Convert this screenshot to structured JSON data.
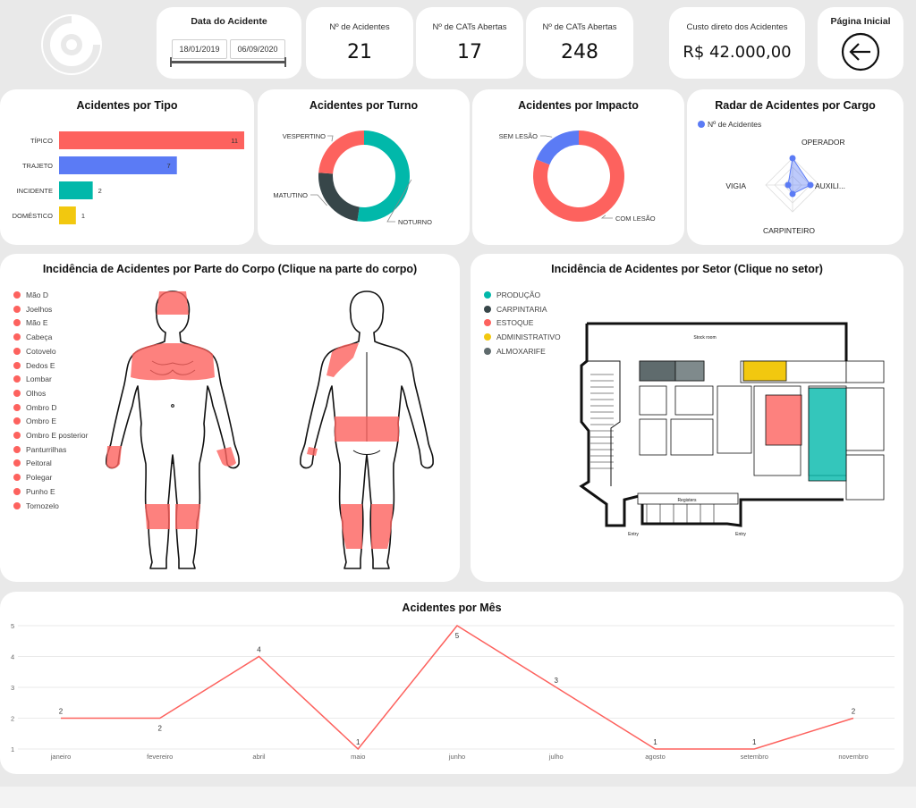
{
  "date_filter": {
    "title": "Data do Acidente",
    "start": "18/01/2019",
    "end": "06/09/2020"
  },
  "kpis": {
    "accidents": {
      "label": "Nº de Acidentes",
      "value": "21"
    },
    "cats_1": {
      "label": "Nº de CATs Abertas",
      "value": "17"
    },
    "cats_2": {
      "label": "Nº de CATs Abertas",
      "value": "248"
    },
    "cost": {
      "label": "Custo direto dos Acidentes",
      "value": "R$ 42.000,00"
    }
  },
  "home": {
    "label": "Página Inicial",
    "icon": "arrow-left-circle-icon"
  },
  "by_type": {
    "title": "Acidentes por Tipo",
    "chart_data": {
      "type": "bar",
      "orientation": "horizontal",
      "categories": [
        "TÍPICO",
        "TRAJETO",
        "INCIDENTE",
        "DOMÉSTICO"
      ],
      "values": [
        11,
        7,
        2,
        1
      ],
      "colors": [
        "#fd625e",
        "#5b7bf5",
        "#01b8aa",
        "#f2c80f"
      ]
    }
  },
  "by_shift": {
    "title": "Acidentes por Turno",
    "chart_data": {
      "type": "pie",
      "donut": true,
      "labels": [
        "NOTURNO",
        "MATUTINO",
        "VESPERTINO"
      ],
      "values": [
        11,
        5,
        5
      ],
      "colors": [
        "#01b8aa",
        "#374649",
        "#fd625e"
      ]
    }
  },
  "by_impact": {
    "title": "Acidentes por Impacto",
    "chart_data": {
      "type": "pie",
      "donut": true,
      "labels": [
        "COM LESÃO",
        "SEM LESÃO"
      ],
      "values": [
        17,
        4
      ],
      "colors": [
        "#fd625e",
        "#5b7bf5"
      ]
    }
  },
  "radar": {
    "title": "Radar de Acidentes por Cargo",
    "legend": "Nº de Acidentes",
    "color": "#5b7bf5",
    "chart_data": {
      "type": "radar",
      "axes": [
        "OPERADOR",
        "AUXILI...",
        "CARPINTEIRO",
        "VIGIA"
      ],
      "values": [
        6,
        4,
        2,
        1
      ],
      "max": 6
    }
  },
  "body": {
    "title": "Incidência de Acidentes por Parte do Corpo (Clique na parte do corpo)",
    "color": "#fd625e",
    "parts": [
      "Mão D",
      "Joelhos",
      "Mão E",
      "Cabeça",
      "Cotovelo",
      "Dedos E",
      "Lombar",
      "Olhos",
      "Ombro D",
      "Ombro E",
      "Ombro E posterior",
      "Panturrilhas",
      "Peitoral",
      "Polegar",
      "Punho E",
      "Tornozelo"
    ]
  },
  "sector": {
    "title": "Incidência de Acidentes por Setor (Clique no setor)",
    "items": [
      {
        "label": "PRODUÇÃO",
        "color": "#01b8aa"
      },
      {
        "label": "CARPINTARIA",
        "color": "#374649"
      },
      {
        "label": "ESTOQUE",
        "color": "#fd625e"
      },
      {
        "label": "ADMINISTRATIVO",
        "color": "#f2c80f"
      },
      {
        "label": "ALMOXARIFE",
        "color": "#5f6b6d"
      }
    ],
    "map_labels": {
      "stock_room": "Stock room",
      "registers": "Registers",
      "entry_left": "Entry",
      "entry_right": "Entry"
    }
  },
  "monthly": {
    "title": "Acidentes por Mês",
    "color": "#fd625e",
    "chart_data": {
      "type": "line",
      "x": [
        "janeiro",
        "fevereiro",
        "abril",
        "maio",
        "junho",
        "julho",
        "agosto",
        "setembro",
        "novembro"
      ],
      "y": [
        2,
        2,
        4,
        1,
        5,
        3,
        1,
        1,
        2
      ],
      "yticks": [
        1,
        2,
        3,
        4,
        5
      ],
      "ylim": [
        1,
        5
      ],
      "grid": true
    }
  }
}
